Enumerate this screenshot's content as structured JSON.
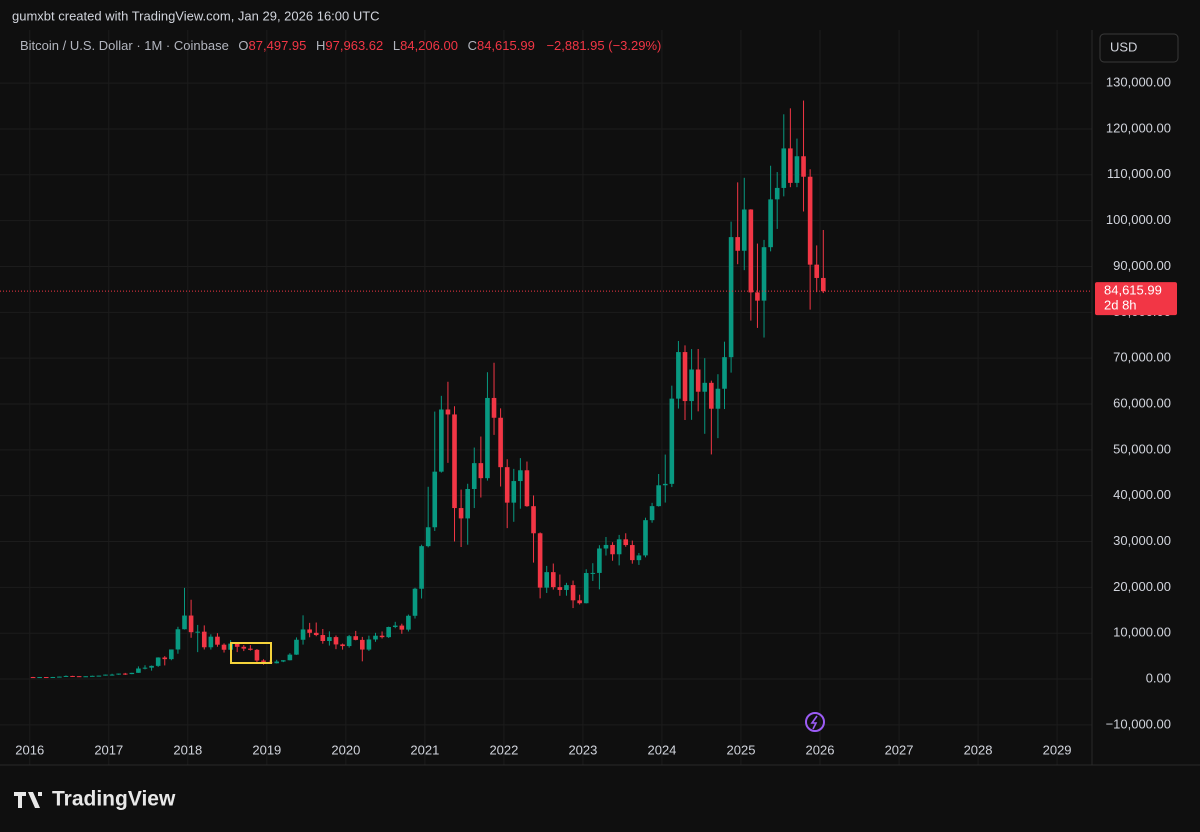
{
  "header": {
    "credit": "gumxbt created with TradingView.com, Jan 29, 2026 16:00 UTC",
    "symbol": "Bitcoin / U.S. Dollar · 1M · Coinbase",
    "ohlc": [
      {
        "key": "O",
        "value": "87,497.95"
      },
      {
        "key": "H",
        "value": "97,963.62"
      },
      {
        "key": "L",
        "value": "84,206.00"
      },
      {
        "key": "C",
        "value": "84,615.99"
      }
    ],
    "change": "−2,881.95 (−3.29%)",
    "currency": "USD"
  },
  "footer": {
    "brand": "TradingView"
  },
  "chart_data": {
    "type": "candlestick",
    "up_color": "#089981",
    "down_color": "#f23645",
    "grid": true,
    "x": [
      "2016-01",
      "2016-02",
      "2016-03",
      "2016-04",
      "2016-05",
      "2016-06",
      "2016-07",
      "2016-08",
      "2016-09",
      "2016-10",
      "2016-11",
      "2016-12",
      "2017-01",
      "2017-02",
      "2017-03",
      "2017-04",
      "2017-05",
      "2017-06",
      "2017-07",
      "2017-08",
      "2017-09",
      "2017-10",
      "2017-11",
      "2017-12",
      "2018-01",
      "2018-02",
      "2018-03",
      "2018-04",
      "2018-05",
      "2018-06",
      "2018-07",
      "2018-08",
      "2018-09",
      "2018-10",
      "2018-11",
      "2018-12",
      "2019-01",
      "2019-02",
      "2019-03",
      "2019-04",
      "2019-05",
      "2019-06",
      "2019-07",
      "2019-08",
      "2019-09",
      "2019-10",
      "2019-11",
      "2019-12",
      "2020-01",
      "2020-02",
      "2020-03",
      "2020-04",
      "2020-05",
      "2020-06",
      "2020-07",
      "2020-08",
      "2020-09",
      "2020-10",
      "2020-11",
      "2020-12",
      "2021-01",
      "2021-02",
      "2021-03",
      "2021-04",
      "2021-05",
      "2021-06",
      "2021-07",
      "2021-08",
      "2021-09",
      "2021-10",
      "2021-11",
      "2021-12",
      "2022-01",
      "2022-02",
      "2022-03",
      "2022-04",
      "2022-05",
      "2022-06",
      "2022-07",
      "2022-08",
      "2022-09",
      "2022-10",
      "2022-11",
      "2022-12",
      "2023-01",
      "2023-02",
      "2023-03",
      "2023-04",
      "2023-05",
      "2023-06",
      "2023-07",
      "2023-08",
      "2023-09",
      "2023-10",
      "2023-11",
      "2023-12",
      "2024-01",
      "2024-02",
      "2024-03",
      "2024-04",
      "2024-05",
      "2024-06",
      "2024-07",
      "2024-08",
      "2024-09",
      "2024-10",
      "2024-11",
      "2024-12",
      "2025-01",
      "2025-02",
      "2025-03",
      "2025-04",
      "2025-05",
      "2025-06",
      "2025-07",
      "2025-08",
      "2025-09",
      "2025-10",
      "2025-11",
      "2025-12",
      "2026-01"
    ],
    "open": [
      430,
      368,
      437,
      416,
      448,
      531,
      673,
      624,
      575,
      609,
      700,
      745,
      964,
      970,
      1190,
      1080,
      1350,
      2300,
      2480,
      2875,
      4700,
      4340,
      6450,
      10860,
      13850,
      10220,
      10330,
      6930,
      9240,
      7490,
      6390,
      7730,
      7030,
      6630,
      6370,
      4040,
      3740,
      3440,
      3820,
      4100,
      5320,
      8570,
      10820,
      10080,
      9600,
      8300,
      9150,
      7550,
      7190,
      9350,
      8540,
      6430,
      8630,
      9450,
      9140,
      11350,
      11660,
      10780,
      13800,
      19700,
      28990,
      33110,
      45240,
      58800,
      57720,
      37300,
      35040,
      41460,
      47100,
      43820,
      61320,
      57000,
      46220,
      38480,
      43190,
      45540,
      37710,
      31800,
      19940,
      23320,
      20050,
      19430,
      20490,
      17170,
      16540,
      23130,
      23150,
      28480,
      29250,
      27220,
      30480,
      29230,
      25940,
      26970,
      34660,
      37720,
      42270,
      42580,
      61170,
      71330,
      60640,
      67530,
      62680,
      64620,
      58970,
      63330,
      70220,
      96410,
      93430,
      102430,
      84350,
      82550,
      94210,
      104640,
      107140,
      115760,
      108240,
      114050,
      109580,
      90400,
      87497.95
    ],
    "high": [
      475,
      448,
      440,
      467,
      550,
      780,
      705,
      630,
      617,
      740,
      755,
      980,
      1150,
      1210,
      1340,
      1360,
      2760,
      3000,
      2950,
      4750,
      5000,
      6450,
      11400,
      19890,
      17300,
      11800,
      11700,
      9760,
      10000,
      7780,
      8500,
      7750,
      7420,
      7400,
      6550,
      4320,
      4100,
      4200,
      4120,
      5640,
      9080,
      13900,
      12250,
      12330,
      10920,
      10400,
      9500,
      7740,
      9620,
      10500,
      9190,
      9460,
      10080,
      10380,
      11430,
      12480,
      12070,
      14070,
      19920,
      29300,
      41940,
      58350,
      61780,
      64850,
      59500,
      41330,
      42600,
      50500,
      52900,
      66930,
      69000,
      59050,
      47950,
      45850,
      48190,
      47450,
      40050,
      31990,
      24680,
      25200,
      22800,
      20990,
      21480,
      18400,
      23950,
      25270,
      29200,
      30990,
      29850,
      31440,
      31800,
      30200,
      27490,
      35200,
      38440,
      44730,
      48970,
      64000,
      73750,
      72800,
      71980,
      72000,
      70000,
      65100,
      66500,
      73600,
      99800,
      108350,
      109350,
      102500,
      95000,
      95800,
      111980,
      110600,
      123200,
      124500,
      117900,
      126200,
      111200,
      94600,
      97963.62
    ],
    "low": [
      355,
      363,
      395,
      413,
      443,
      528,
      475,
      538,
      570,
      600,
      690,
      740,
      750,
      915,
      890,
      1060,
      1340,
      2100,
      1830,
      2650,
      2970,
      4100,
      5520,
      10800,
      9000,
      5870,
      6450,
      6430,
      7040,
      5780,
      6070,
      5880,
      6100,
      6200,
      3530,
      3130,
      3380,
      3390,
      3690,
      4080,
      5270,
      7510,
      9110,
      9340,
      7710,
      7300,
      6520,
      6420,
      6850,
      8450,
      3860,
      6140,
      8120,
      8840,
      8970,
      11090,
      9870,
      10370,
      13200,
      17570,
      28730,
      32300,
      45030,
      47160,
      30000,
      28800,
      29300,
      37300,
      39600,
      43290,
      53260,
      42000,
      32920,
      34300,
      37160,
      37580,
      25400,
      17600,
      18780,
      19520,
      18160,
      18180,
      15480,
      16260,
      16490,
      21400,
      19570,
      26940,
      25810,
      24800,
      28860,
      25170,
      24900,
      26550,
      34100,
      37620,
      38500,
      41880,
      59000,
      56500,
      56550,
      58400,
      53500,
      49000,
      52550,
      58900,
      66840,
      90500,
      89200,
      78200,
      76600,
      74500,
      93300,
      98200,
      105300,
      107300,
      107300,
      102000,
      80600,
      84400,
      84206
    ],
    "close": [
      368,
      437,
      416,
      448,
      531,
      673,
      624,
      575,
      609,
      700,
      745,
      964,
      970,
      1190,
      1080,
      1350,
      2300,
      2480,
      2875,
      4700,
      4340,
      6450,
      10860,
      13850,
      10220,
      10330,
      6930,
      9240,
      7490,
      6390,
      7730,
      7030,
      6630,
      6370,
      4040,
      3740,
      3440,
      3820,
      4100,
      5320,
      8570,
      10820,
      10080,
      9600,
      8300,
      9150,
      7550,
      7190,
      9350,
      8540,
      6430,
      8630,
      9450,
      9140,
      11350,
      11660,
      10780,
      13800,
      19700,
      28990,
      33110,
      45240,
      58800,
      57720,
      37300,
      35040,
      41460,
      47100,
      43820,
      61320,
      57000,
      46220,
      38480,
      43190,
      45540,
      37710,
      31800,
      19940,
      23320,
      20050,
      19430,
      20490,
      17170,
      16540,
      23130,
      23150,
      28480,
      29250,
      27220,
      30480,
      29230,
      25940,
      26970,
      34660,
      37720,
      42270,
      42580,
      61170,
      71330,
      60640,
      67530,
      62680,
      64620,
      58970,
      63330,
      70220,
      96410,
      93430,
      102430,
      84350,
      82550,
      94210,
      104640,
      107140,
      115760,
      108240,
      114050,
      109580,
      90400,
      87497.95,
      84615.99
    ],
    "xlim": [
      "2015-10",
      "2029-06"
    ],
    "xticks": [
      {
        "value": "2016-01",
        "label": "2016"
      },
      {
        "value": "2017-01",
        "label": "2017"
      },
      {
        "value": "2018-01",
        "label": "2018"
      },
      {
        "value": "2019-01",
        "label": "2019"
      },
      {
        "value": "2020-01",
        "label": "2020"
      },
      {
        "value": "2021-01",
        "label": "2021"
      },
      {
        "value": "2022-01",
        "label": "2022"
      },
      {
        "value": "2023-01",
        "label": "2023"
      },
      {
        "value": "2024-01",
        "label": "2024"
      },
      {
        "value": "2025-01",
        "label": "2025"
      },
      {
        "value": "2026-01",
        "label": "2026"
      },
      {
        "value": "2027-01",
        "label": "2027"
      },
      {
        "value": "2028-01",
        "label": "2028"
      },
      {
        "value": "2029-01",
        "label": "2029"
      }
    ],
    "ylim": [
      -13300,
      140500
    ],
    "yticks": [
      {
        "value": -10000,
        "label": "−10,000.00"
      },
      {
        "value": 0,
        "label": "0.00"
      },
      {
        "value": 10000,
        "label": "10,000.00"
      },
      {
        "value": 20000,
        "label": "20,000.00"
      },
      {
        "value": 30000,
        "label": "30,000.00"
      },
      {
        "value": 40000,
        "label": "40,000.00"
      },
      {
        "value": 50000,
        "label": "50,000.00"
      },
      {
        "value": 60000,
        "label": "60,000.00"
      },
      {
        "value": 70000,
        "label": "70,000.00"
      },
      {
        "value": 80000,
        "label": "80,000.00"
      },
      {
        "value": 90000,
        "label": "90,000.00"
      },
      {
        "value": 100000,
        "label": "100,000.00"
      },
      {
        "value": 110000,
        "label": "110,000.00"
      },
      {
        "value": 120000,
        "label": "120,000.00"
      },
      {
        "value": 130000,
        "label": "130,000.00"
      }
    ],
    "last_price": {
      "value": 84615.99,
      "label": "84,615.99",
      "countdown": "2d 8h"
    }
  }
}
